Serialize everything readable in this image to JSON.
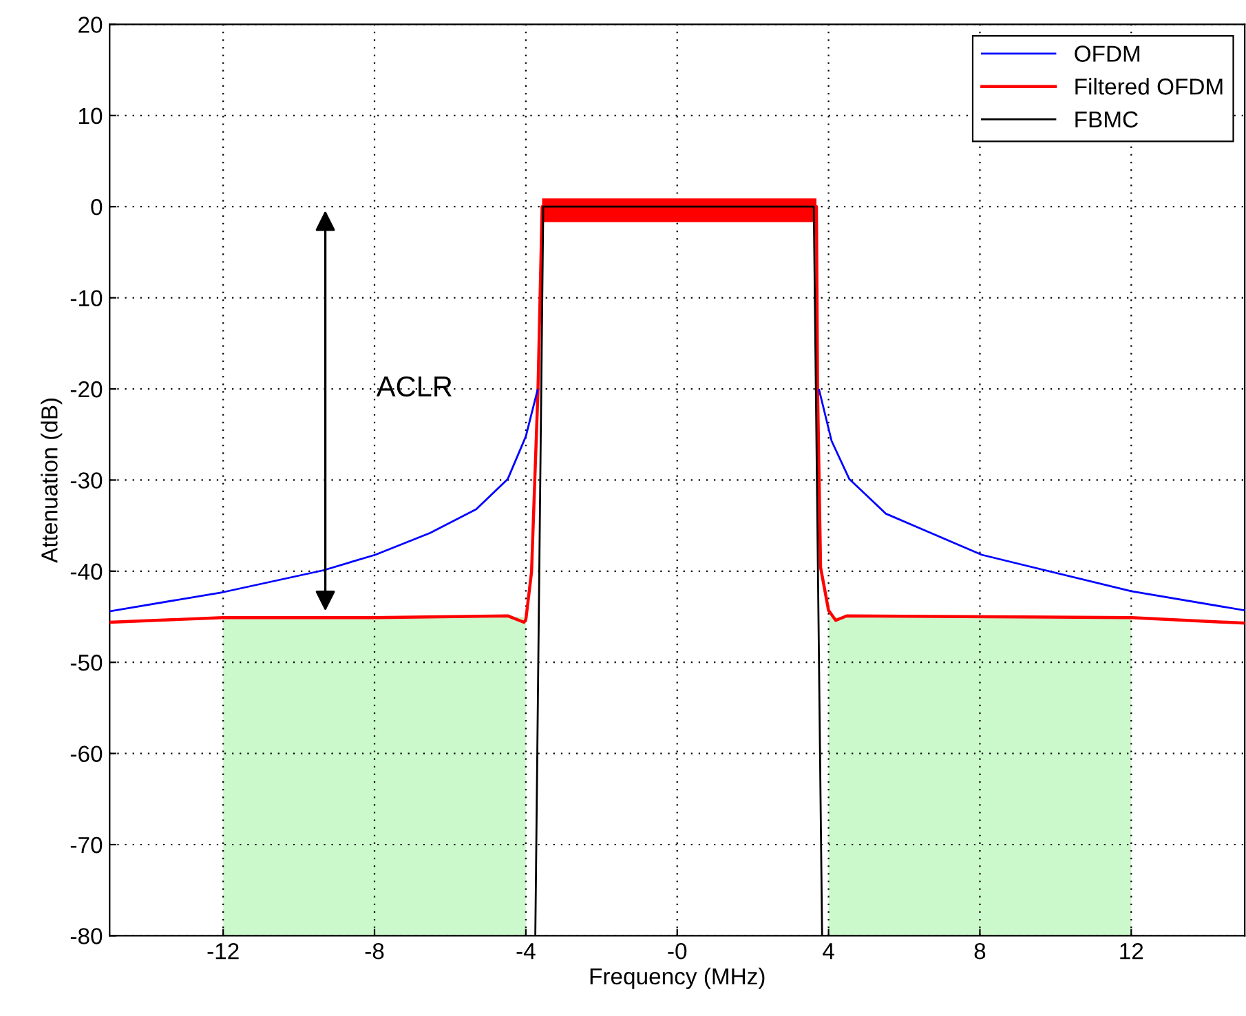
{
  "chart_data": {
    "type": "line",
    "xlabel": "Frequency (MHz)",
    "ylabel": "Attenuation (dB)",
    "xlim": [
      -15,
      15
    ],
    "ylim": [
      -80,
      20
    ],
    "xticks": [
      -12,
      -8,
      -4,
      {
        "value": 0,
        "label": "-0"
      },
      4,
      8,
      12
    ],
    "yticks": [
      -80,
      -70,
      -60,
      -50,
      -40,
      -30,
      -20,
      -10,
      0,
      10,
      20
    ],
    "grid": true,
    "legend": "top right",
    "annotations": [
      "ACLR"
    ],
    "series": [
      {
        "type": "bar",
        "color": "#ccf9cc",
        "x": [
          -8,
          8
        ],
        "base": [
          -80,
          -80
        ],
        "values": [
          35,
          35
        ]
      },
      {
        "name": "OFDM",
        "color": "#0000ff",
        "x": [
          -15,
          -12,
          -9.35,
          -7.98,
          -6.53,
          -5.31,
          -4.48,
          -4.0,
          -3.69,
          0,
          3.75,
          4.08,
          4.55,
          5.52,
          8.05,
          12,
          15
        ],
        "values": [
          -44.4,
          -42.3,
          -39.9,
          -38.2,
          -35.8,
          -33.2,
          -29.9,
          -25.2,
          -20.1,
          null,
          -20.1,
          -25.7,
          -29.9,
          -33.7,
          -38.2,
          -42.2,
          -44.3
        ]
      },
      {
        "name": "Filtered OFDM",
        "color": "#ff0000",
        "x": [
          -15,
          -12,
          -8,
          -4.48,
          -4.05,
          -4.0,
          -3.85,
          -3.68,
          -3.57,
          3.68,
          3.71,
          3.79,
          4.0,
          4.19,
          4.48,
          12,
          15
        ],
        "values": [
          -45.6,
          -45.1,
          -45.1,
          -44.9,
          -45.6,
          -45.3,
          -40.1,
          -20.2,
          0,
          0,
          -20.1,
          -39.6,
          -44.3,
          -45.4,
          -44.9,
          -45.1,
          -45.7
        ],
        "lower": [
          null,
          null,
          null,
          null,
          null,
          null,
          null,
          null,
          -1.7,
          -1.7,
          null,
          null,
          null,
          null,
          null,
          null,
          null
        ],
        "upper": [
          null,
          null,
          null,
          null,
          null,
          null,
          null,
          null,
          0.9,
          0.9,
          null,
          null,
          null,
          null,
          null,
          null,
          null
        ]
      },
      {
        "name": "FBMC",
        "color": "#000000",
        "x": [
          -3.75,
          -3.54,
          3.61,
          3.83
        ],
        "values": [
          -80,
          0,
          0,
          -80
        ]
      }
    ]
  }
}
